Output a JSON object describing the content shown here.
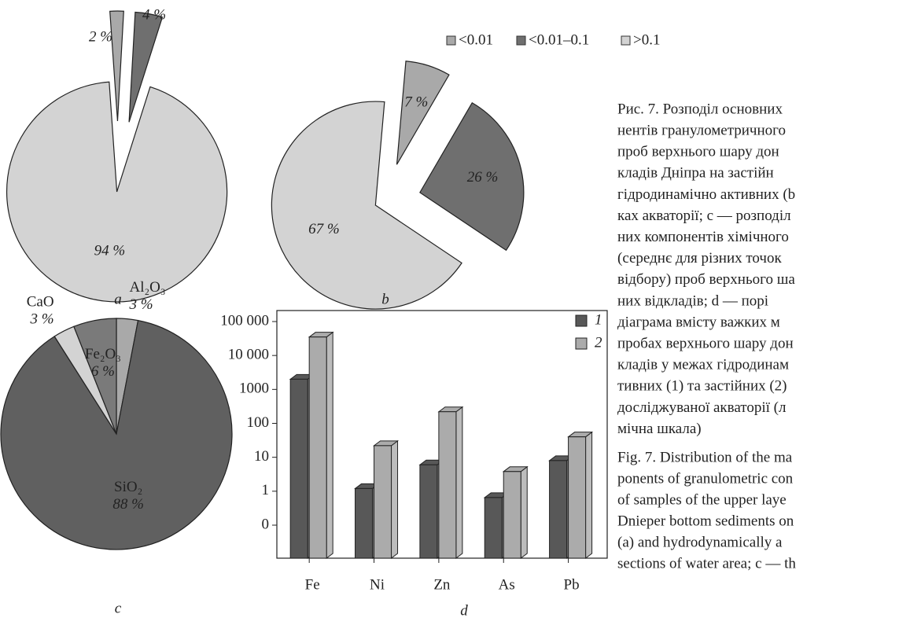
{
  "legend": {
    "labels": [
      "<0.01",
      "<0.01–0.1",
      ">0.1"
    ],
    "colors": [
      "#a9a9a9",
      "#6f6f6f",
      "#d3d3d3"
    ]
  },
  "chart_data": [
    {
      "type": "pie",
      "title": "a",
      "values": [
        2,
        4,
        94
      ],
      "value_labels": [
        "2 %",
        "4 %",
        "94 %"
      ],
      "colors": [
        "#a9a9a9",
        "#6f6f6f",
        "#d3d3d3"
      ]
    },
    {
      "type": "pie",
      "title": "b",
      "values": [
        7,
        26,
        67
      ],
      "value_labels": [
        "7 %",
        "26 %",
        "67 %"
      ],
      "colors": [
        "#a9a9a9",
        "#6f6f6f",
        "#d3d3d3"
      ]
    },
    {
      "type": "pie",
      "title": "c",
      "categories": [
        "Al₂O₃",
        "SiO₂",
        "CaO",
        "Fe₂O₃"
      ],
      "values": [
        3,
        88,
        3,
        6
      ],
      "value_labels": [
        "3 %",
        "88 %",
        "3 %",
        "6 %"
      ],
      "colors": [
        "#a9a9a9",
        "#606060",
        "#d3d3d3",
        "#7a7a7a"
      ]
    },
    {
      "type": "bar",
      "title": "d",
      "categories": [
        "Fe",
        "Ni",
        "Zn",
        "As",
        "Pb"
      ],
      "series": [
        {
          "name": "1",
          "color": "#585858",
          "values": [
            2000,
            1.2,
            6,
            0.65,
            8
          ]
        },
        {
          "name": "2",
          "color": "#ababab",
          "values": [
            35000,
            22,
            220,
            3.8,
            40
          ]
        }
      ],
      "log_scale": true,
      "ylim": [
        0.1,
        100000
      ],
      "yticks": [
        {
          "value": 0.1,
          "label": "0"
        },
        1,
        10,
        100,
        1000,
        {
          "value": 10000,
          "label": "10 000"
        },
        {
          "value": 100000,
          "label": "100 000"
        }
      ],
      "legend_position": "upper right"
    }
  ],
  "caption": {
    "lines": [
      "Рис. 7. Розподіл основних",
      "нентів гранулометричного",
      "проб верхнього шару дон",
      "кладів Дніпра на застійн",
      "гідродинамічно активних (b",
      "ках акваторії; c — розподіл",
      "них компонентів хімічного",
      "(середнє для різних точок",
      "відбору) проб верхнього ша",
      "них відкладів; d — порі",
      "діаграма вмісту важких м",
      "пробах верхнього шару дон",
      "кладів у межах гідродинам",
      "тивних (1) та застійних (2)",
      "досліджуваної акваторії (л",
      "мічна шкала)",
      "Fig. 7. Distribution of the ma",
      "ponents of granulometric con",
      "of samples of the upper laye",
      "Dnieper bottom sediments on",
      "(a) and hydrodynamically a",
      "sections of water area; c — th"
    ]
  }
}
